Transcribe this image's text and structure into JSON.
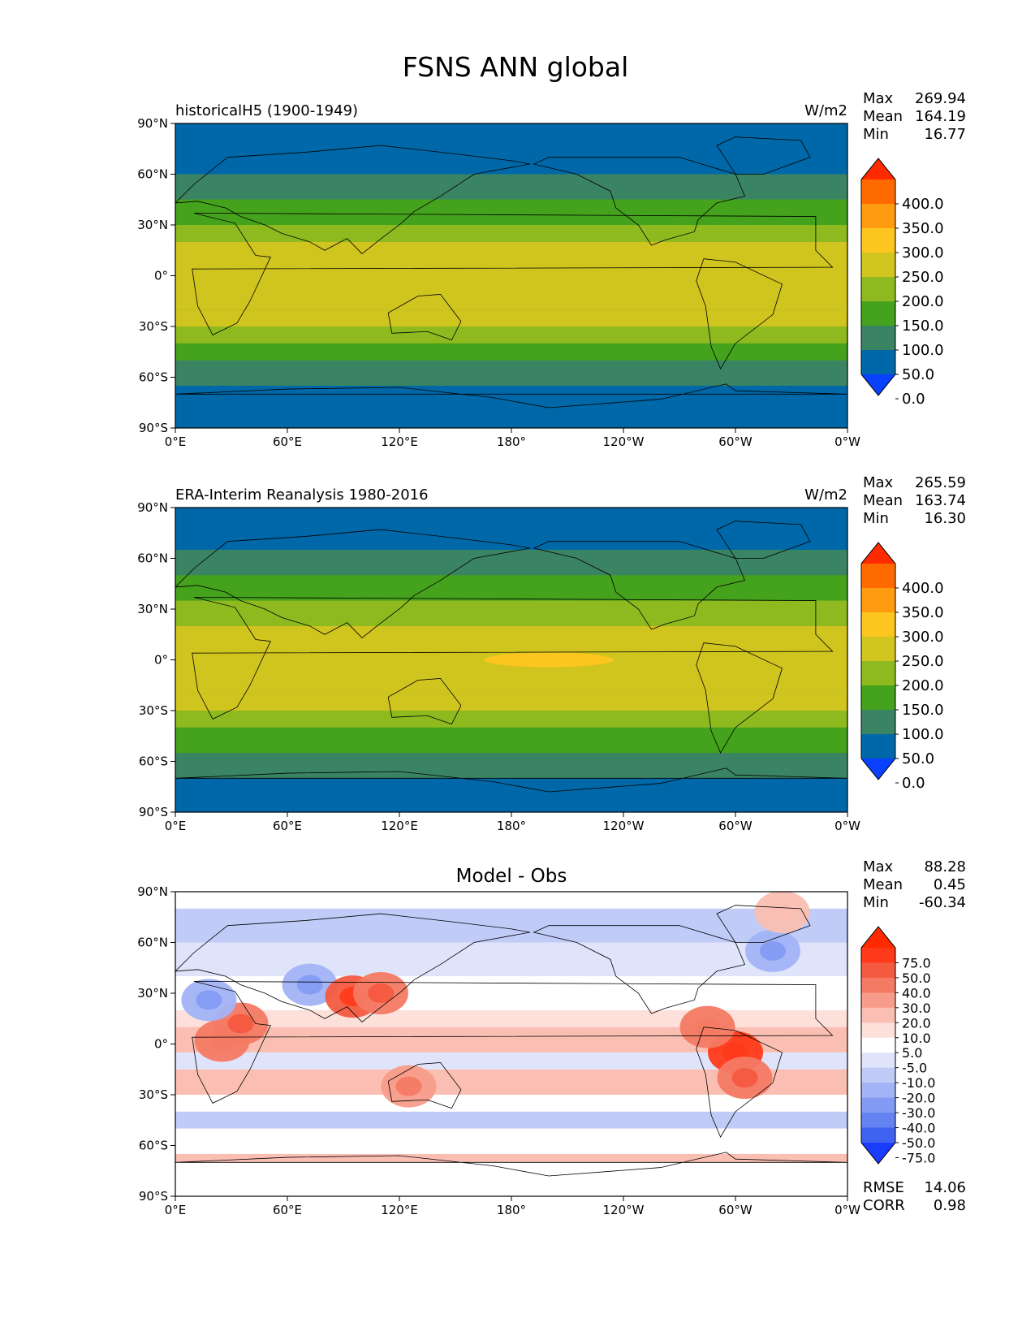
{
  "figure": {
    "title": "FSNS ANN global"
  },
  "chart_data": [
    {
      "type": "heatmap",
      "panel": "top",
      "title_left": "historicalH5 (1900-1949)",
      "units": "W/m2",
      "stats": {
        "max_label": "Max",
        "max": "269.94",
        "mean_label": "Mean",
        "mean": "164.19",
        "min_label": "Min",
        "min": "16.77"
      },
      "xticks": [
        "0°E",
        "60°E",
        "120°E",
        "180°",
        "120°W",
        "60°W",
        "0°W"
      ],
      "yticks": [
        "90°N",
        "60°N",
        "30°N",
        "0°",
        "30°S",
        "60°S",
        "90°S"
      ],
      "xlim": [
        0,
        360
      ],
      "ylim": [
        -90,
        90
      ],
      "colorbar": {
        "labels": [
          "400.0",
          "350.0",
          "300.0",
          "250.0",
          "200.0",
          "150.0",
          "100.0",
          "50.0",
          "0.0"
        ],
        "colors": [
          "#ff2a00",
          "#ff6a00",
          "#ff9b10",
          "#fcc51f",
          "#d0c41f",
          "#8fba1f",
          "#45a21c",
          "#3a8463",
          "#0068a8",
          "#0a40ff"
        ],
        "extend": "both"
      },
      "zonal_bands": [
        {
          "lat": [
            60,
            90
          ],
          "value": 30
        },
        {
          "lat": [
            45,
            60
          ],
          "value": 90
        },
        {
          "lat": [
            30,
            45
          ],
          "value": 140
        },
        {
          "lat": [
            20,
            30
          ],
          "value": 180
        },
        {
          "lat": [
            -20,
            20
          ],
          "value": 220
        },
        {
          "lat": [
            -30,
            -20
          ],
          "value": 200
        },
        {
          "lat": [
            -40,
            -30
          ],
          "value": 175
        },
        {
          "lat": [
            -50,
            -40
          ],
          "value": 130
        },
        {
          "lat": [
            -65,
            -50
          ],
          "value": 90
        },
        {
          "lat": [
            -90,
            -65
          ],
          "value": 30
        }
      ]
    },
    {
      "type": "heatmap",
      "panel": "middle",
      "title_left": "ERA-Interim Reanalysis 1980-2016",
      "units": "W/m2",
      "stats": {
        "max_label": "Max",
        "max": "265.59",
        "mean_label": "Mean",
        "mean": "163.74",
        "min_label": "Min",
        "min": "16.30"
      },
      "xticks": [
        "0°E",
        "60°E",
        "120°E",
        "180°",
        "120°W",
        "60°W",
        "0°W"
      ],
      "yticks": [
        "90°N",
        "60°N",
        "30°N",
        "0°",
        "30°S",
        "60°S",
        "90°S"
      ],
      "xlim": [
        0,
        360
      ],
      "ylim": [
        -90,
        90
      ],
      "colorbar": {
        "labels": [
          "400.0",
          "350.0",
          "300.0",
          "250.0",
          "200.0",
          "150.0",
          "100.0",
          "50.0",
          "0.0"
        ],
        "colors": [
          "#ff2a00",
          "#ff6a00",
          "#ff9b10",
          "#fcc51f",
          "#d0c41f",
          "#8fba1f",
          "#45a21c",
          "#3a8463",
          "#0068a8",
          "#0a40ff"
        ],
        "extend": "both"
      },
      "zonal_bands": [
        {
          "lat": [
            65,
            90
          ],
          "value": 30
        },
        {
          "lat": [
            50,
            65
          ],
          "value": 90
        },
        {
          "lat": [
            35,
            50
          ],
          "value": 140
        },
        {
          "lat": [
            20,
            35
          ],
          "value": 180
        },
        {
          "lat": [
            -20,
            20
          ],
          "value": 220
        },
        {
          "lat": [
            -30,
            -20
          ],
          "value": 200
        },
        {
          "lat": [
            -40,
            -30
          ],
          "value": 175
        },
        {
          "lat": [
            -55,
            -40
          ],
          "value": 130
        },
        {
          "lat": [
            -70,
            -55
          ],
          "value": 90
        },
        {
          "lat": [
            -90,
            -70
          ],
          "value": 30
        }
      ]
    },
    {
      "type": "heatmap",
      "panel": "bottom",
      "title_center": "Model - Obs",
      "stats": {
        "max_label": "Max",
        "max": "88.28",
        "mean_label": "Mean",
        "mean": "0.45",
        "min_label": "Min",
        "min": "-60.34"
      },
      "metrics": {
        "rmse_label": "RMSE",
        "rmse": "14.06",
        "corr_label": "CORR",
        "corr": "0.98"
      },
      "xticks": [
        "0°E",
        "60°E",
        "120°E",
        "180°",
        "120°W",
        "60°W",
        "0°W"
      ],
      "yticks": [
        "90°N",
        "60°N",
        "30°N",
        "0°",
        "30°S",
        "60°S",
        "90°S"
      ],
      "xlim": [
        0,
        360
      ],
      "ylim": [
        -90,
        90
      ],
      "colorbar": {
        "labels": [
          "75.0",
          "50.0",
          "40.0",
          "30.0",
          "20.0",
          "10.0",
          "5.0",
          "-5.0",
          "-10.0",
          "-20.0",
          "-30.0",
          "-40.0",
          "-50.0",
          "-75.0"
        ],
        "colors": [
          "#ff2a00",
          "#ff3a1a",
          "#f45a40",
          "#f47a64",
          "#f79c8a",
          "#fabfb2",
          "#fde0da",
          "#ffffff",
          "#dfe4fb",
          "#c0cbf8",
          "#a2b3f6",
          "#839bf4",
          "#6583f2",
          "#3f63f0",
          "#1a3cff"
        ],
        "extend": "both"
      },
      "zonal_bands": [
        {
          "lat": [
            80,
            90
          ],
          "value": 0
        },
        {
          "lat": [
            60,
            80
          ],
          "value": -12
        },
        {
          "lat": [
            40,
            60
          ],
          "value": -8
        },
        {
          "lat": [
            20,
            40
          ],
          "value": 0
        },
        {
          "lat": [
            10,
            20
          ],
          "value": 6
        },
        {
          "lat": [
            -5,
            10
          ],
          "value": 12
        },
        {
          "lat": [
            -15,
            -5
          ],
          "value": -6
        },
        {
          "lat": [
            -30,
            -15
          ],
          "value": 12
        },
        {
          "lat": [
            -40,
            -30
          ],
          "value": 0
        },
        {
          "lat": [
            -50,
            -40
          ],
          "value": -15
        },
        {
          "lat": [
            -65,
            -50
          ],
          "value": 0
        },
        {
          "lat": [
            -70,
            -65
          ],
          "value": 15
        },
        {
          "lat": [
            -90,
            -70
          ],
          "value": -3
        }
      ],
      "anomalies": [
        {
          "lon": 25,
          "lat": 2,
          "value": 30
        },
        {
          "lon": 35,
          "lat": 12,
          "value": 35
        },
        {
          "lon": 18,
          "lat": 26,
          "value": -25
        },
        {
          "lon": 72,
          "lat": 35,
          "value": -30
        },
        {
          "lon": 95,
          "lat": 28,
          "value": 40
        },
        {
          "lon": 110,
          "lat": 30,
          "value": 35
        },
        {
          "lon": 300,
          "lat": -5,
          "value": 55
        },
        {
          "lon": 305,
          "lat": -20,
          "value": 35
        },
        {
          "lon": 285,
          "lat": 10,
          "value": 30
        },
        {
          "lon": 125,
          "lat": -25,
          "value": 25
        },
        {
          "lon": 320,
          "lat": 55,
          "value": -30
        },
        {
          "lon": 325,
          "lat": 78,
          "value": 15
        }
      ]
    }
  ]
}
